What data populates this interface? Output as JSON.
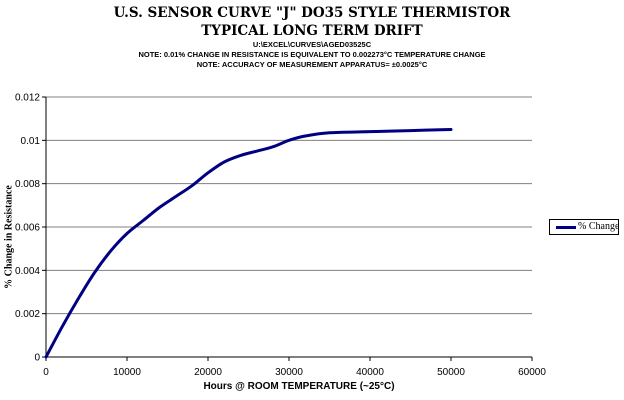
{
  "header": {
    "title_line1": "U.S. SENSOR CURVE \"J\" DO35 STYLE THERMISTOR",
    "title_line2": "TYPICAL LONG TERM DRIFT",
    "note_file": "U:\\EXCEL\\CURVES\\AGED03525C",
    "note_1": "NOTE: 0.01% CHANGE IN RESISTANCE IS EQUIVALENT TO 0.002273°C TEMPERATURE CHANGE",
    "note_2": "NOTE: ACCURACY OF MEASUREMENT APPARATUS= ±0.0025°C"
  },
  "colors": {
    "series": "#000080",
    "grid": "#808080",
    "axis": "#000000"
  },
  "chart_data": {
    "type": "line",
    "xlabel": "Hours @ ROOM TEMPERATURE (~25°C)",
    "ylabel": "% Change in Resistance",
    "xlim": [
      0,
      60000
    ],
    "ylim": [
      0,
      0.012
    ],
    "x_ticks": [
      "0",
      "10000",
      "20000",
      "30000",
      "40000",
      "50000",
      "60000"
    ],
    "y_ticks": [
      "0",
      "0.002",
      "0.004",
      "0.006",
      "0.008",
      "0.01",
      "0.012"
    ],
    "grid": "horizontal",
    "legend_position": "right",
    "series": [
      {
        "name": "% Change",
        "x": [
          0,
          2000,
          4000,
          6000,
          8000,
          10000,
          12000,
          14000,
          16000,
          18000,
          20000,
          22000,
          24000,
          26000,
          28000,
          30000,
          32000,
          35000,
          40000,
          45000,
          50000
        ],
        "y": [
          0,
          0.0014,
          0.0027,
          0.0039,
          0.0049,
          0.0057,
          0.0063,
          0.0069,
          0.0074,
          0.0079,
          0.0085,
          0.009,
          0.0093,
          0.0095,
          0.0097,
          0.01,
          0.0102,
          0.01035,
          0.0104,
          0.01045,
          0.0105
        ]
      }
    ]
  }
}
